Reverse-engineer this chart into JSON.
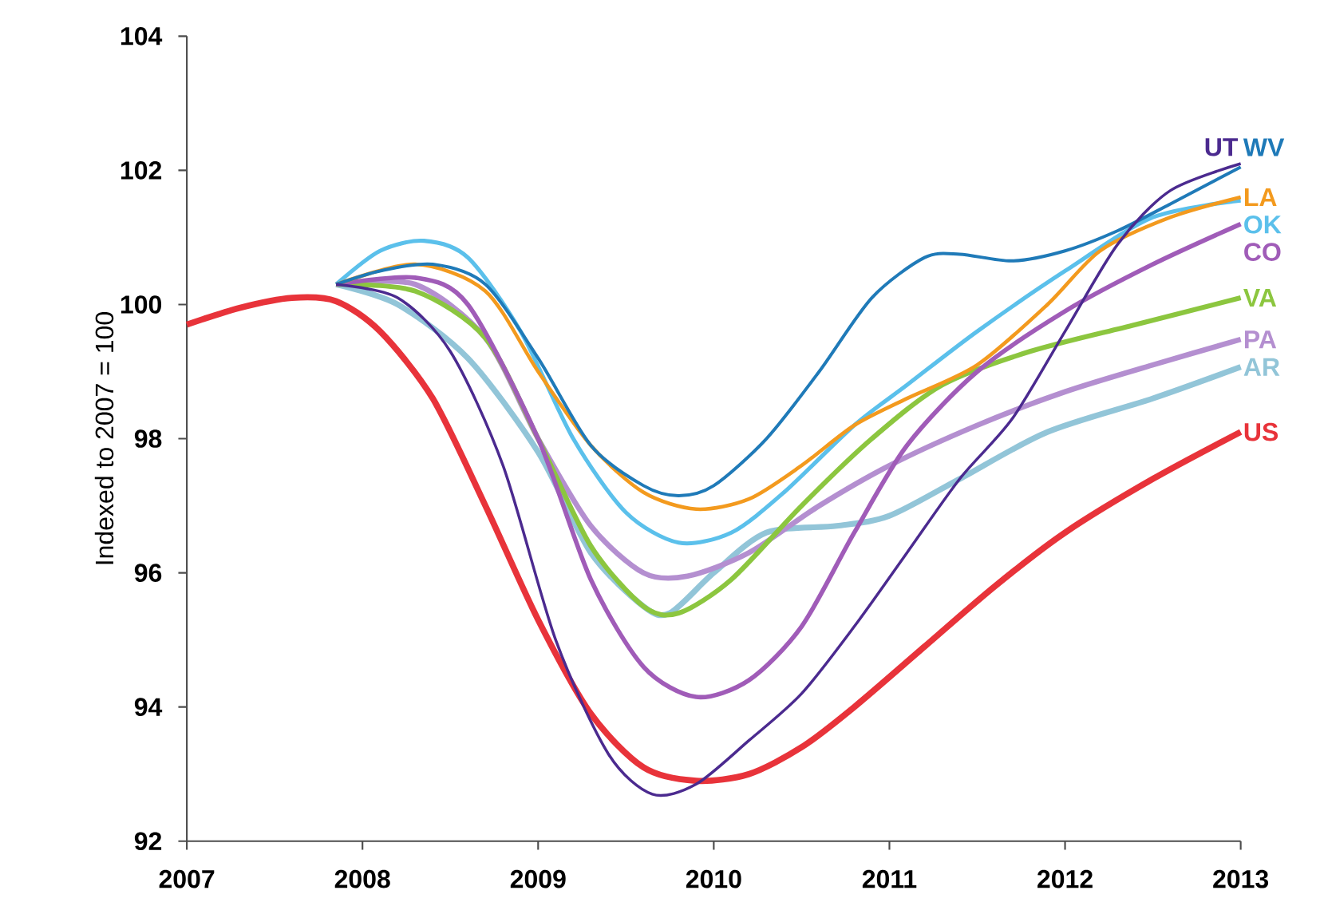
{
  "chart_data": {
    "type": "line",
    "ylabel": "Indexed to 2007 = 100",
    "xlim": [
      2007,
      2013
    ],
    "ylim": [
      92,
      104
    ],
    "xticks": [
      2007,
      2008,
      2009,
      2010,
      2011,
      2012,
      2013
    ],
    "yticks": [
      92,
      94,
      96,
      98,
      100,
      102,
      104
    ],
    "series": [
      {
        "name": "UT",
        "color": "#4b2a8f",
        "x": [
          2007.85,
          2008.2,
          2008.5,
          2008.8,
          2009.1,
          2009.4,
          2009.65,
          2009.9,
          2010.2,
          2010.5,
          2010.8,
          2011.1,
          2011.4,
          2011.7,
          2012.0,
          2012.3,
          2012.6,
          2013
        ],
        "values": [
          100.3,
          100.1,
          99.3,
          97.6,
          95.0,
          93.3,
          92.7,
          92.85,
          93.5,
          94.2,
          95.2,
          96.3,
          97.4,
          98.3,
          99.6,
          100.9,
          101.7,
          102.1
        ]
      },
      {
        "name": "WV",
        "color": "#1f7ab8",
        "x": [
          2007.85,
          2008.1,
          2008.4,
          2008.7,
          2009.0,
          2009.3,
          2009.6,
          2009.8,
          2010.0,
          2010.3,
          2010.6,
          2010.9,
          2011.2,
          2011.4,
          2011.7,
          2012.0,
          2012.3,
          2012.6,
          2013
        ],
        "values": [
          100.3,
          100.5,
          100.6,
          100.3,
          99.2,
          97.9,
          97.3,
          97.15,
          97.3,
          98.0,
          99.0,
          100.1,
          100.7,
          100.75,
          100.65,
          100.8,
          101.1,
          101.5,
          102.05
        ]
      },
      {
        "name": "LA",
        "color": "#f39a1e",
        "x": [
          2007.85,
          2008.3,
          2008.7,
          2009.0,
          2009.3,
          2009.6,
          2009.9,
          2010.2,
          2010.5,
          2010.8,
          2011.1,
          2011.5,
          2011.9,
          2012.2,
          2012.6,
          2013
        ],
        "values": [
          100.3,
          100.6,
          100.2,
          99.0,
          97.9,
          97.2,
          96.95,
          97.1,
          97.6,
          98.2,
          98.6,
          99.1,
          100.0,
          100.8,
          101.3,
          101.6
        ]
      },
      {
        "name": "OK",
        "color": "#5bc0eb",
        "x": [
          2007.85,
          2008.1,
          2008.35,
          2008.6,
          2008.9,
          2009.2,
          2009.5,
          2009.8,
          2010.1,
          2010.4,
          2010.8,
          2011.1,
          2011.5,
          2012.0,
          2012.5,
          2013
        ],
        "values": [
          100.3,
          100.8,
          100.95,
          100.7,
          99.6,
          98.0,
          96.9,
          96.45,
          96.6,
          97.2,
          98.2,
          98.8,
          99.6,
          100.5,
          101.3,
          101.55
        ]
      },
      {
        "name": "CO",
        "color": "#a05cb8",
        "x": [
          2007.85,
          2008.3,
          2008.6,
          2009.0,
          2009.3,
          2009.6,
          2009.9,
          2010.2,
          2010.5,
          2010.8,
          2011.1,
          2011.5,
          2012.0,
          2012.5,
          2013
        ],
        "values": [
          100.3,
          100.4,
          100.0,
          98.0,
          95.9,
          94.6,
          94.15,
          94.4,
          95.2,
          96.6,
          97.9,
          99.0,
          99.9,
          100.6,
          101.2
        ]
      },
      {
        "name": "VA",
        "color": "#8cc63f",
        "x": [
          2007.85,
          2008.3,
          2008.7,
          2009.0,
          2009.3,
          2009.6,
          2009.8,
          2010.1,
          2010.5,
          2010.9,
          2011.3,
          2011.8,
          2012.4,
          2013
        ],
        "values": [
          100.3,
          100.2,
          99.5,
          98.0,
          96.4,
          95.5,
          95.4,
          95.9,
          97.0,
          98.0,
          98.8,
          99.3,
          99.7,
          100.1
        ]
      },
      {
        "name": "PA",
        "color": "#b48fd0",
        "x": [
          2007.85,
          2008.3,
          2008.7,
          2009.0,
          2009.3,
          2009.6,
          2009.85,
          2010.2,
          2010.6,
          2011.0,
          2011.5,
          2012.0,
          2012.5,
          2013
        ],
        "values": [
          100.3,
          100.3,
          99.5,
          98.0,
          96.7,
          96.0,
          95.95,
          96.3,
          97.0,
          97.6,
          98.2,
          98.7,
          99.1,
          99.48
        ]
      },
      {
        "name": "AR",
        "color": "#92c5d8",
        "x": [
          2007.85,
          2008.2,
          2008.6,
          2009.0,
          2009.3,
          2009.6,
          2009.75,
          2010.0,
          2010.3,
          2010.7,
          2011.0,
          2011.4,
          2011.9,
          2012.5,
          2013
        ],
        "values": [
          100.3,
          100.0,
          99.2,
          97.8,
          96.3,
          95.5,
          95.4,
          96.0,
          96.6,
          96.7,
          96.85,
          97.4,
          98.1,
          98.6,
          99.07
        ]
      },
      {
        "name": "US",
        "color": "#e8333a",
        "x": [
          2007,
          2007.3,
          2007.6,
          2007.85,
          2008.1,
          2008.4,
          2008.7,
          2009.0,
          2009.3,
          2009.6,
          2009.9,
          2010.2,
          2010.5,
          2010.8,
          2011.2,
          2011.6,
          2012.0,
          2012.5,
          2013
        ],
        "values": [
          99.7,
          99.95,
          100.1,
          100.05,
          99.6,
          98.6,
          97.0,
          95.3,
          93.9,
          93.1,
          92.9,
          93.0,
          93.4,
          94.0,
          94.9,
          95.8,
          96.6,
          97.4,
          98.1
        ]
      }
    ]
  }
}
